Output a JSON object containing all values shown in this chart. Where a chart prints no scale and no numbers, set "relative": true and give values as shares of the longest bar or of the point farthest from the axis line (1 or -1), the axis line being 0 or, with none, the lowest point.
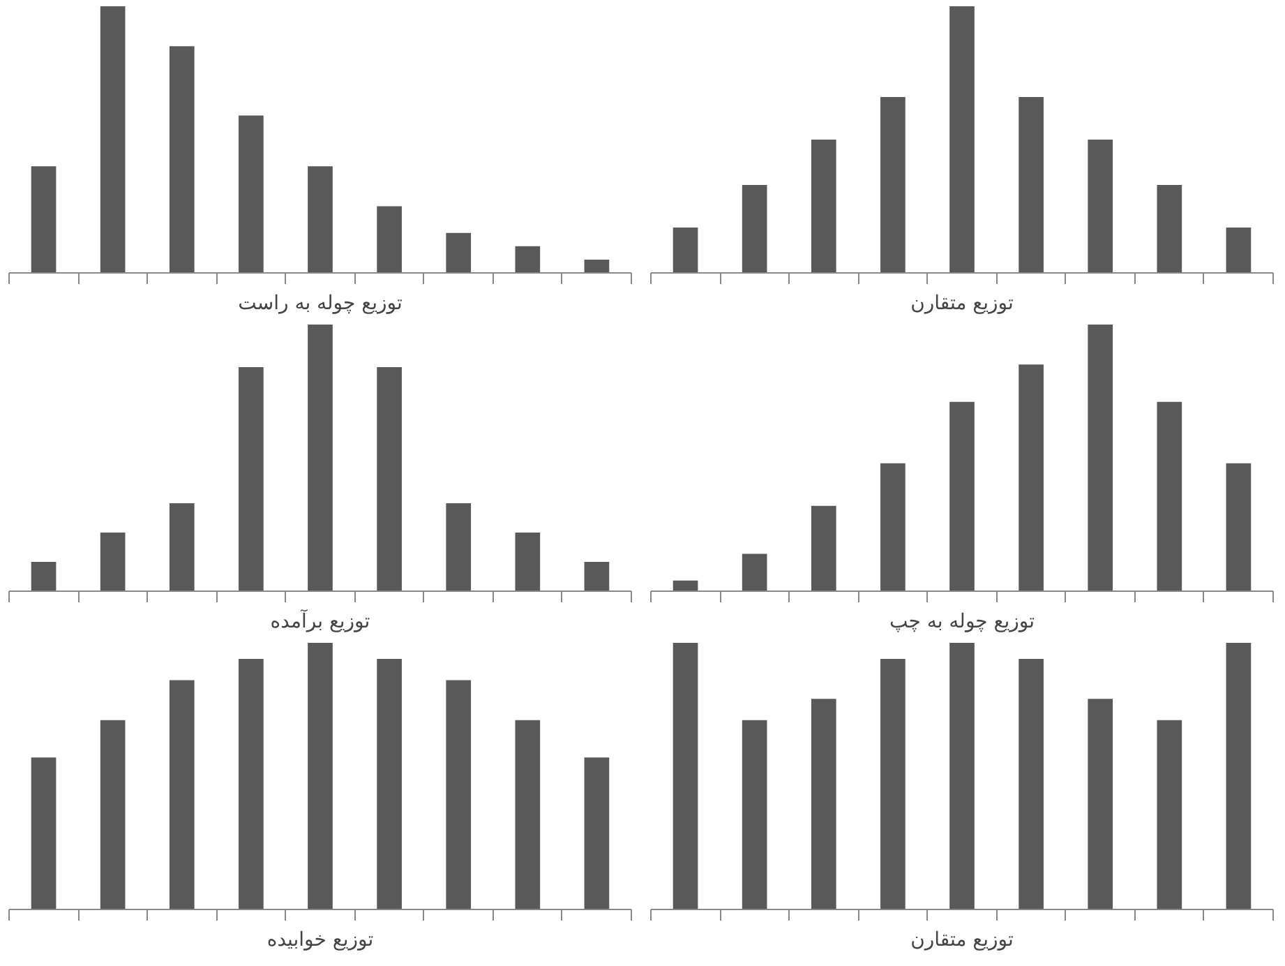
{
  "chart_data": [
    {
      "type": "bar",
      "relative": true,
      "xlabel": "توزیع چوله به راست",
      "categories": [
        null,
        null,
        null,
        null,
        null,
        null,
        null,
        null,
        null
      ],
      "color": "#595959",
      "grid": false,
      "tick_labels": false,
      "values": [
        0.4,
        1,
        0.85,
        0.59,
        0.4,
        0.25,
        0.15,
        0.1,
        0.05
      ]
    },
    {
      "type": "bar",
      "relative": true,
      "xlabel": "توزیع متقارن",
      "categories": [
        null,
        null,
        null,
        null,
        null,
        null,
        null,
        null,
        null
      ],
      "color": "#595959",
      "grid": false,
      "tick_labels": false,
      "values": [
        0.17,
        0.33,
        0.5,
        0.66,
        1,
        0.66,
        0.5,
        0.33,
        0.17
      ]
    },
    {
      "type": "bar",
      "relative": true,
      "xlabel": "توزیع برآمده",
      "categories": [
        null,
        null,
        null,
        null,
        null,
        null,
        null,
        null,
        null
      ],
      "color": "#595959",
      "grid": false,
      "tick_labels": false,
      "values": [
        0.11,
        0.22,
        0.33,
        0.84,
        1,
        0.84,
        0.33,
        0.22,
        0.11
      ]
    },
    {
      "type": "bar",
      "relative": true,
      "xlabel": "توزیع چوله به چپ",
      "categories": [
        null,
        null,
        null,
        null,
        null,
        null,
        null,
        null,
        null
      ],
      "color": "#595959",
      "grid": false,
      "tick_labels": false,
      "values": [
        0.04,
        0.14,
        0.32,
        0.48,
        0.71,
        0.85,
        1,
        0.71,
        0.48
      ]
    },
    {
      "type": "bar",
      "relative": true,
      "xlabel": "توزیع خوابیده",
      "categories": [
        null,
        null,
        null,
        null,
        null,
        null,
        null,
        null,
        null
      ],
      "color": "#595959",
      "grid": false,
      "tick_labels": false,
      "values": [
        0.57,
        0.71,
        0.86,
        0.94,
        1,
        0.94,
        0.86,
        0.71,
        0.57
      ]
    },
    {
      "type": "bar",
      "relative": true,
      "xlabel": "توزیع متقارن",
      "categories": [
        null,
        null,
        null,
        null,
        null,
        null,
        null,
        null,
        null
      ],
      "color": "#595959",
      "grid": false,
      "tick_labels": false,
      "values": [
        1,
        0.71,
        0.79,
        0.94,
        1,
        0.94,
        0.79,
        0.71,
        1
      ]
    }
  ]
}
